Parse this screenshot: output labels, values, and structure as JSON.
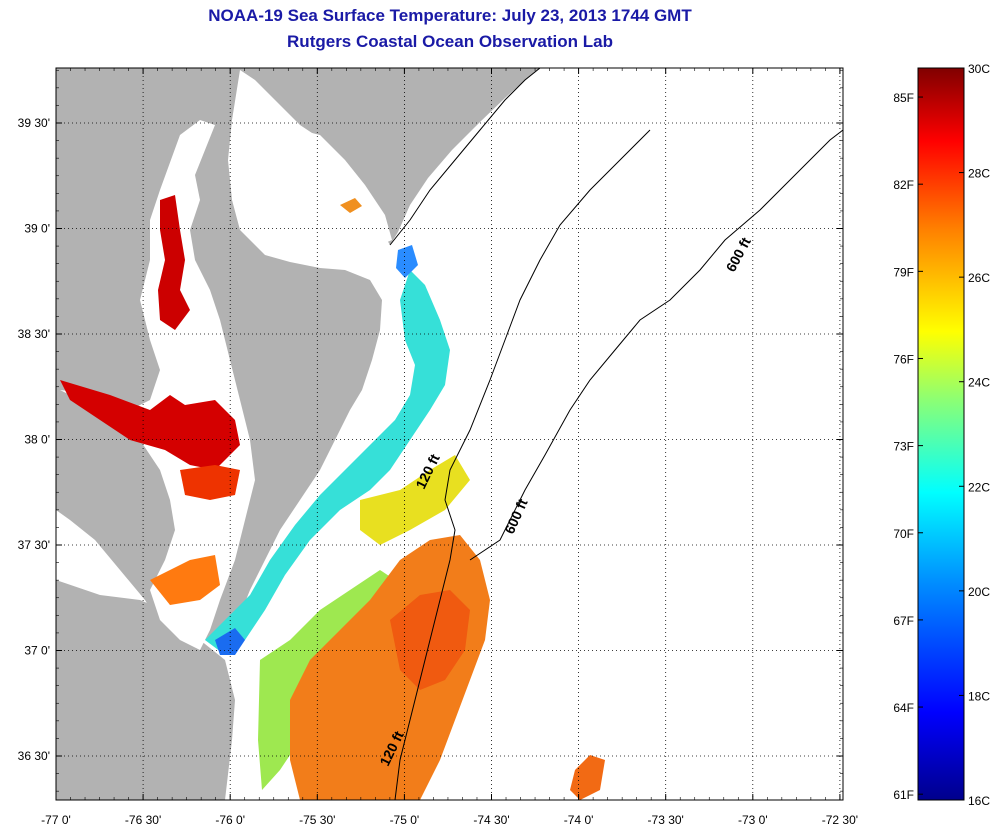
{
  "header": {
    "title": "NOAA-19 Sea Surface Temperature:  July 23, 2013 1744 GMT",
    "subtitle": "Rutgers Coastal Ocean Observation Lab"
  },
  "map": {
    "lon_ticks": [
      "-77 0'",
      "-76 30'",
      "-76 0'",
      "-75 30'",
      "-75 0'",
      "-74 30'",
      "-74 0'",
      "-73 30'",
      "-73 0'",
      "-72 30'"
    ],
    "lat_ticks": [
      "39 30'",
      "39 0'",
      "38 30'",
      "38 0'",
      "37 30'",
      "37 0'",
      "36 30'"
    ],
    "isobath_labels": [
      "600 ft",
      "600 ft",
      "120 ft",
      "120 ft"
    ],
    "colors": {
      "land": "#b2b2b2",
      "ocean_nodata": "#ffffff"
    }
  },
  "colorbar": {
    "celsius_labels": [
      "30C",
      "28C",
      "26C",
      "24C",
      "22C",
      "20C",
      "18C",
      "16C"
    ],
    "fahrenheit_labels": [
      "85F",
      "82F",
      "79F",
      "76F",
      "73F",
      "70F",
      "67F",
      "64F",
      "61F"
    ],
    "range_c": [
      16,
      30
    ],
    "colors": [
      "#000080",
      "#0000ff",
      "#0080ff",
      "#00ffff",
      "#80ff80",
      "#ffff00",
      "#ff8000",
      "#ff0000",
      "#800000"
    ]
  }
}
